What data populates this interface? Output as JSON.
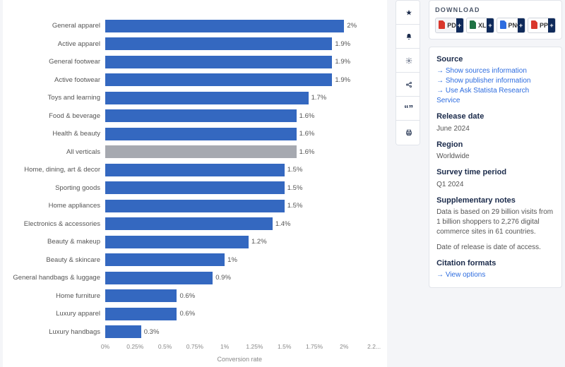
{
  "chart": {
    "type": "bar-horizontal",
    "x_title": "Conversion rate",
    "x_min": 0,
    "x_max": 2.25,
    "x_ticks": [
      {
        "v": 0,
        "label": "0%"
      },
      {
        "v": 0.25,
        "label": "0.25%"
      },
      {
        "v": 0.5,
        "label": "0.5%"
      },
      {
        "v": 0.75,
        "label": "0.75%"
      },
      {
        "v": 1,
        "label": "1%"
      },
      {
        "v": 1.25,
        "label": "1.25%"
      },
      {
        "v": 1.5,
        "label": "1.5%"
      },
      {
        "v": 1.75,
        "label": "1.75%"
      },
      {
        "v": 2,
        "label": "2%"
      },
      {
        "v": 2.25,
        "label": "2.2..."
      }
    ],
    "bar_color_default": "#3468c0",
    "bar_color_highlight": "#a6a9b0",
    "label_color": "#555555",
    "background_color": "#ffffff",
    "rows": [
      {
        "label": "General apparel",
        "value": 2.0,
        "display": "2%",
        "highlight": false
      },
      {
        "label": "Active apparel",
        "value": 1.9,
        "display": "1.9%",
        "highlight": false
      },
      {
        "label": "General footwear",
        "value": 1.9,
        "display": "1.9%",
        "highlight": false
      },
      {
        "label": "Active footwear",
        "value": 1.9,
        "display": "1.9%",
        "highlight": false
      },
      {
        "label": "Toys and learning",
        "value": 1.7,
        "display": "1.7%",
        "highlight": false
      },
      {
        "label": "Food & beverage",
        "value": 1.6,
        "display": "1.6%",
        "highlight": false
      },
      {
        "label": "Health & beauty",
        "value": 1.6,
        "display": "1.6%",
        "highlight": false
      },
      {
        "label": "All verticals",
        "value": 1.6,
        "display": "1.6%",
        "highlight": true
      },
      {
        "label": "Home, dining, art & decor",
        "value": 1.5,
        "display": "1.5%",
        "highlight": false
      },
      {
        "label": "Sporting goods",
        "value": 1.5,
        "display": "1.5%",
        "highlight": false
      },
      {
        "label": "Home appliances",
        "value": 1.5,
        "display": "1.5%",
        "highlight": false
      },
      {
        "label": "Electronics & accessories",
        "value": 1.4,
        "display": "1.4%",
        "highlight": false
      },
      {
        "label": "Beauty & makeup",
        "value": 1.2,
        "display": "1.2%",
        "highlight": false
      },
      {
        "label": "Beauty & skincare",
        "value": 1.0,
        "display": "1%",
        "highlight": false
      },
      {
        "label": "General handbags & luggage",
        "value": 0.9,
        "display": "0.9%",
        "highlight": false
      },
      {
        "label": "Home furniture",
        "value": 0.6,
        "display": "0.6%",
        "highlight": false
      },
      {
        "label": "Luxury apparel",
        "value": 0.6,
        "display": "0.6%",
        "highlight": false
      },
      {
        "label": "Luxury handbags",
        "value": 0.3,
        "display": "0.3%",
        "highlight": false
      }
    ]
  },
  "download": {
    "title": "DOWNLOAD",
    "buttons": [
      {
        "label": "PDF",
        "icon_color": "#d9372c"
      },
      {
        "label": "XLS",
        "icon_color": "#1f7244"
      },
      {
        "label": "PNG",
        "icon_color": "#2d6cdf"
      },
      {
        "label": "PPT",
        "icon_color": "#d9372c"
      }
    ]
  },
  "info": {
    "source_heading": "Source",
    "source_links": [
      "Show sources information",
      "Show publisher information",
      "Use Ask Statista Research Service"
    ],
    "release_heading": "Release date",
    "release_value": "June 2024",
    "region_heading": "Region",
    "region_value": "Worldwide",
    "survey_heading": "Survey time period",
    "survey_value": "Q1 2024",
    "notes_heading": "Supplementary notes",
    "notes_value": "Data is based on 29 billion visits from 1 billion shoppers to 2,276 digital commerce sites in 61 countries.",
    "notes_value2": "Date of release is date of access.",
    "citation_heading": "Citation formats",
    "citation_link": "View options"
  }
}
